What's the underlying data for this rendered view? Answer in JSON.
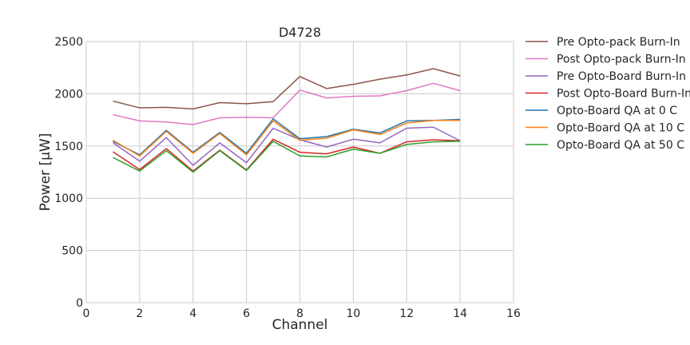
{
  "chart_data": {
    "type": "line",
    "title": "D4728",
    "xlabel": "Channel",
    "ylabel": "Power [μW]",
    "xlim": [
      0,
      16
    ],
    "ylim": [
      0,
      2500
    ],
    "xticks": [
      0,
      2,
      4,
      6,
      8,
      10,
      12,
      14,
      16
    ],
    "yticks": [
      0,
      500,
      1000,
      1500,
      2000,
      2500
    ],
    "grid": true,
    "legend": "outside-right",
    "x": [
      1,
      2,
      3,
      4,
      5,
      6,
      7,
      8,
      9,
      10,
      11,
      12,
      13,
      14
    ],
    "series": [
      {
        "name": "Pre Opto-pack Burn-In",
        "color": "#8c564b",
        "values": [
          1930,
          1865,
          1870,
          1855,
          1915,
          1905,
          1925,
          2165,
          2050,
          2090,
          2140,
          2180,
          2240,
          2170
        ]
      },
      {
        "name": "Post Opto-pack Burn-In",
        "color": "#e377c2",
        "values": [
          1800,
          1740,
          1730,
          1705,
          1770,
          1775,
          1770,
          2035,
          1960,
          1975,
          1980,
          2030,
          2100,
          2030
        ]
      },
      {
        "name": "Pre Opto-Board Burn-In",
        "color": "#9467bd",
        "values": [
          1530,
          1355,
          1580,
          1315,
          1530,
          1340,
          1670,
          1560,
          1490,
          1565,
          1530,
          1670,
          1680,
          1550
        ]
      },
      {
        "name": "Post Opto-Board Burn-In",
        "color": "#d62728",
        "values": [
          1445,
          1275,
          1475,
          1260,
          1460,
          1270,
          1565,
          1440,
          1425,
          1490,
          1430,
          1540,
          1560,
          1550
        ]
      },
      {
        "name": "Opto-Board QA at 0 C",
        "color": "#1f77b4",
        "values": [
          1545,
          1415,
          1650,
          1440,
          1630,
          1430,
          1760,
          1570,
          1590,
          1660,
          1625,
          1740,
          1745,
          1755
        ]
      },
      {
        "name": "Opto-Board QA at 10 C",
        "color": "#ff7f0e",
        "values": [
          1555,
          1405,
          1640,
          1430,
          1620,
          1415,
          1740,
          1555,
          1575,
          1655,
          1610,
          1720,
          1745,
          1745
        ]
      },
      {
        "name": "Opto-Board QA at 50 C",
        "color": "#2ca02c",
        "values": [
          1390,
          1260,
          1455,
          1250,
          1455,
          1265,
          1545,
          1405,
          1395,
          1470,
          1430,
          1515,
          1540,
          1545
        ]
      }
    ]
  }
}
